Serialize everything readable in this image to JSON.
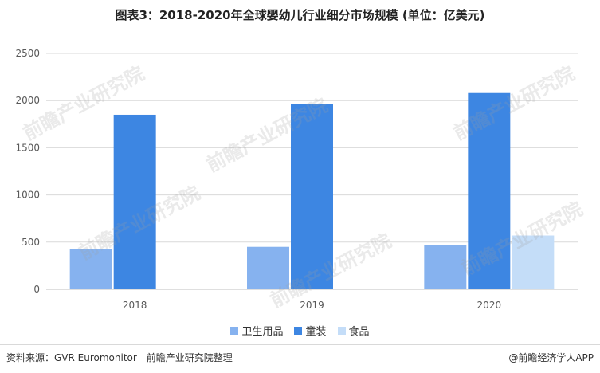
{
  "title": "图表3：2018-2020年全球婴幼儿行业细分市场规模 (单位：亿美元)",
  "footer": {
    "source": "资料来源：GVR Euromonitor　前瞻产业研究院整理",
    "credit": "@前瞻经济学人APP"
  },
  "watermark": "前瞻产业研究院",
  "colors": {
    "hygiene": "#86b2ef",
    "clothing": "#3d86e2",
    "food": "#c4ddf8",
    "grid": "#d9d9d9",
    "axis_text": "#595959"
  },
  "chart_data": {
    "type": "bar",
    "categories": [
      "2018",
      "2019",
      "2020"
    ],
    "series": [
      {
        "name": "卫生用品",
        "values": [
          430,
          450,
          470
        ]
      },
      {
        "name": "童装",
        "values": [
          1850,
          1965,
          2080
        ]
      },
      {
        "name": "食品",
        "values": [
          null,
          null,
          570
        ]
      }
    ],
    "ylim": [
      0,
      2500
    ],
    "yticks": [
      0,
      500,
      1000,
      1500,
      2000,
      2500
    ],
    "grid": true,
    "legend_position": "bottom"
  }
}
